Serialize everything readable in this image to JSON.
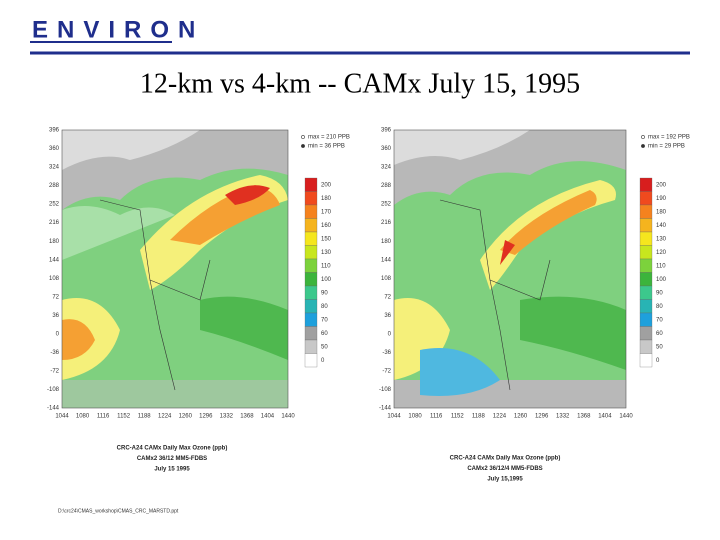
{
  "header": {
    "logo": "ENVIRON",
    "title": "12-km vs 4-km -- CAMx July 15, 1995"
  },
  "panels": [
    {
      "legend": [
        "max = 210 PPB",
        "min = 36 PPB"
      ],
      "yticks": [
        396,
        360,
        324,
        288,
        252,
        216,
        180,
        144,
        108,
        72,
        36,
        0,
        -36,
        -72,
        -108,
        -144
      ],
      "xticks": [
        1044,
        1080,
        1116,
        1152,
        1188,
        1224,
        1260,
        1296,
        1332,
        1368,
        1404,
        1440
      ],
      "colorbar": [
        200,
        180,
        170,
        160,
        150,
        130,
        110,
        100,
        90,
        80,
        70,
        60,
        50,
        0
      ],
      "caption": [
        "CRC-A24 CAMx Daily Max Ozone (ppb)",
        "CAMx2 36/12 MM5-FDBS",
        "July 15 1995"
      ]
    },
    {
      "legend": [
        "max = 192 PPB",
        "min = 29 PPB"
      ],
      "yticks": [
        396,
        360,
        324,
        288,
        252,
        216,
        180,
        144,
        108,
        72,
        36,
        0,
        -36,
        -72,
        -108,
        -144
      ],
      "xticks": [
        1044,
        1080,
        1116,
        1152,
        1188,
        1224,
        1260,
        1296,
        1332,
        1368,
        1404,
        1440
      ],
      "colorbar": [
        200,
        190,
        180,
        140,
        130,
        120,
        110,
        100,
        90,
        80,
        70,
        60,
        50,
        0
      ],
      "caption": [
        "CRC-A24 CAMx Daily Max Ozone (ppb)",
        "CAMx2 36/12/4 MM5-FDBS",
        "July 15,1995"
      ]
    }
  ],
  "footer": "D:\\crc24\\CMAS_workshop\\CMAS_CRC_MARSTD.ppt"
}
